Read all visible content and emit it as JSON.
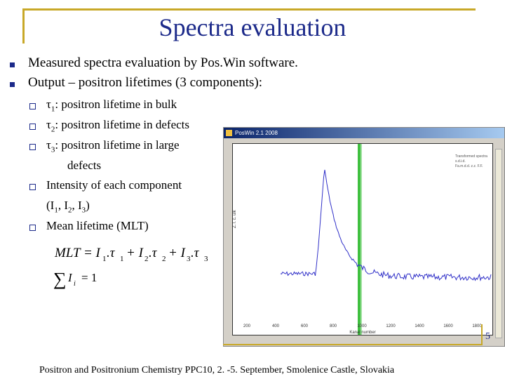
{
  "slide": {
    "title": "Spectra evaluation",
    "bullets": [
      "Measured spectra evaluation by Pos.Win software.",
      "Output – positron lifetimes (3 components):"
    ],
    "subbullets": [
      {
        "sym": "τ",
        "sub": "1",
        "text": ": positron lifetime in bulk"
      },
      {
        "sym": "τ",
        "sub": "2",
        "text": ": positron lifetime in defects"
      },
      {
        "sym": "τ",
        "sub": "3",
        "text": ": positron lifetime in large"
      },
      {
        "cont": "defects"
      },
      {
        "text": "Intensity of each component"
      },
      {
        "cont": "(I",
        "s1": "1",
        "m1": ", I",
        "s2": "2",
        "m2": ", I",
        "s3": "3",
        "end": ")"
      },
      {
        "text": "Mean lifetime (MLT)"
      }
    ],
    "footer": "Positron and Positronium Chemistry PPC10, 2. -5. September, Smolenice Castle, Slovakia",
    "page_number": "5"
  },
  "poswin": {
    "window_title": "PosWin 2.1 2008",
    "xlabel": "Kanal number",
    "ylabel": "Z. l. c. ulk",
    "x_ticks": [
      "200",
      "400",
      "600",
      "800",
      "1000",
      "1200",
      "1400",
      "1600",
      "1800"
    ],
    "legend": [
      "Transformed spectra",
      "s.d.i.d.",
      "Fa.m.d.d. z.z. F.F."
    ]
  },
  "colors": {
    "title": "#1c2a8a",
    "accent": "#c8a828",
    "spectrum": "#3030c8",
    "marker": "#40c040"
  }
}
